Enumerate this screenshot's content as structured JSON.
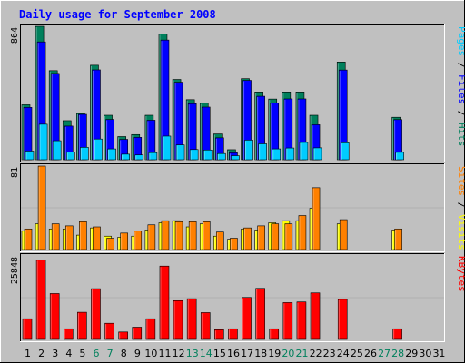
{
  "chart_data": {
    "type": "bar",
    "title": "Daily usage for September 2008",
    "categories": [
      "1",
      "2",
      "3",
      "4",
      "5",
      "6",
      "7",
      "8",
      "9",
      "10",
      "11",
      "12",
      "13",
      "14",
      "15",
      "16",
      "17",
      "18",
      "19",
      "20",
      "21",
      "22",
      "23",
      "24",
      "25",
      "26",
      "27",
      "28",
      "29",
      "30",
      "31"
    ],
    "weekend_days": [
      "6",
      "7",
      "13",
      "14",
      "20",
      "21",
      "27",
      "28"
    ],
    "panels": [
      {
        "id": "top",
        "ymax_label": "864",
        "ylim": [
          0,
          864
        ],
        "series": [
          {
            "name": "Hits",
            "color": "#00805c",
            "values": [
              356,
              864,
              577,
              253,
              300,
              612,
              288,
              150,
              163,
              288,
              815,
              520,
              389,
              366,
              167,
              65,
              525,
              439,
              393,
              439,
              439,
              288,
              0,
              633,
              0,
              0,
              0,
              275,
              0,
              0,
              0
            ]
          },
          {
            "name": "Files",
            "color": "#0000ff",
            "values": [
              339,
              763,
              559,
              218,
              294,
              582,
              261,
              132,
              145,
              256,
              775,
              502,
              363,
              341,
              142,
              45,
              514,
              411,
              368,
              394,
              394,
              227,
              0,
              581,
              0,
              0,
              0,
              260,
              0,
              0,
              0
            ]
          },
          {
            "name": "Pages",
            "color": "#00ccff",
            "values": [
              56,
              230,
              123,
              50,
              80,
              134,
              70,
              36,
              31,
              46,
              153,
              96,
              66,
              63,
              40,
              26,
              127,
              103,
              70,
              76,
              112,
              77,
              0,
              110,
              0,
              0,
              0,
              48,
              0,
              0,
              0
            ]
          }
        ]
      },
      {
        "id": "middle",
        "ymax_label": "81",
        "ylim": [
          0,
          81
        ],
        "series": [
          {
            "name": "Visits",
            "color": "#ffff00",
            "values": [
              18,
              25,
              20,
              20,
              14,
              21,
              13,
              12,
              13,
              19,
              26,
              28,
              22,
              25,
              13,
              10,
              20,
              19,
              26,
              28,
              28,
              40,
              0,
              25,
              0,
              0,
              0,
              19,
              0,
              0,
              0
            ]
          },
          {
            "name": "Sites",
            "color": "#ff8000",
            "values": [
              20,
              81,
              25,
              23,
              27,
              22,
              11,
              16,
              18,
              24,
              28,
              27,
              27,
              27,
              17,
              11,
              21,
              23,
              25,
              25,
              33,
              60,
              0,
              29,
              0,
              0,
              0,
              20,
              0,
              0,
              0
            ]
          }
        ]
      },
      {
        "id": "bottom",
        "ymax_label": "25848",
        "ylim": [
          0,
          25848
        ],
        "series": [
          {
            "name": "KBytes",
            "color": "#ff0000",
            "values": [
              6400,
              24600,
              14200,
              3300,
              8400,
              15700,
              5000,
              2300,
              3800,
              6400,
              22700,
              12000,
              12600,
              8300,
              3000,
              3300,
              13000,
              15800,
              3300,
              11400,
              11600,
              14400,
              0,
              12400,
              0,
              0,
              0,
              3300,
              0,
              0,
              0
            ]
          }
        ]
      }
    ],
    "right_labels": [
      {
        "panel": "top",
        "parts": [
          {
            "text": "Pages",
            "color": "#00ccff"
          },
          {
            "text": " / ",
            "color": "#000000"
          },
          {
            "text": "Files",
            "color": "#0000ff"
          },
          {
            "text": " / ",
            "color": "#000000"
          },
          {
            "text": "Hits",
            "color": "#00805c"
          }
        ]
      },
      {
        "panel": "middle",
        "parts": [
          {
            "text": "Sites",
            "color": "#ff8000"
          },
          {
            "text": " / ",
            "color": "#000000"
          },
          {
            "text": "Visits",
            "color": "#ffff00"
          }
        ]
      },
      {
        "panel": "bottom",
        "parts": [
          {
            "text": "KBytes",
            "color": "#ff0000"
          }
        ]
      }
    ],
    "colors": {
      "background": "#c0c0c0",
      "title": "#0000ff",
      "weekday_label": "#000000",
      "weekend_label": "#00805c"
    }
  }
}
